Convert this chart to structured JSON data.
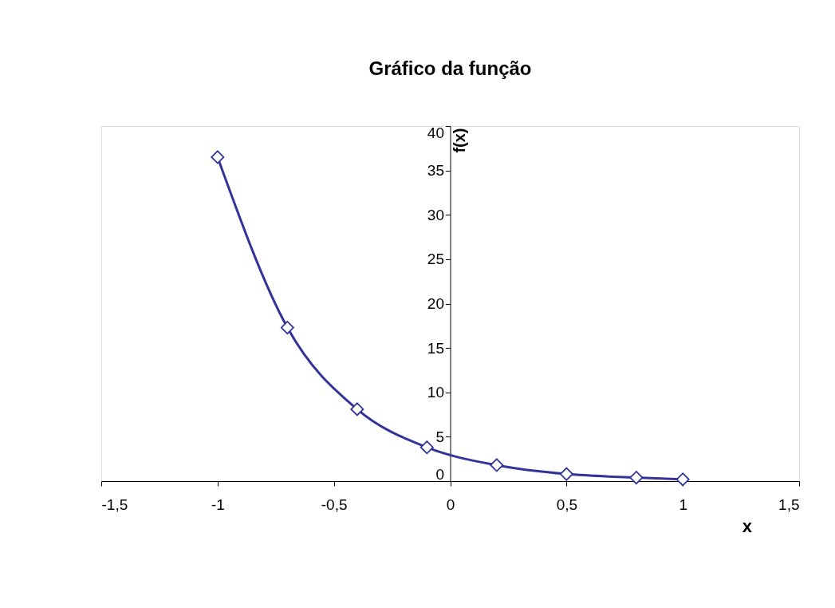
{
  "chart_data": {
    "type": "line",
    "title": "Gráfico da função",
    "xlabel": "x",
    "ylabel": "f(x)",
    "x": [
      -1,
      -0.7,
      -0.4,
      -0.1,
      0.2,
      0.5,
      0.8,
      1
    ],
    "series": [
      {
        "color": "#333399",
        "values": [
          36.5,
          17.3,
          8.1,
          3.8,
          1.8,
          0.8,
          0.4,
          0.2
        ]
      }
    ],
    "xlim": [
      -1.5,
      1.5
    ],
    "xticks": [
      {
        "value": -1.5,
        "label": "-1,5"
      },
      -1,
      {
        "value": -0.5,
        "label": "-0,5"
      },
      0,
      {
        "value": 0.5,
        "label": "0,5"
      },
      1,
      {
        "value": 1.5,
        "label": "1,5"
      }
    ],
    "ylim": [
      0,
      40
    ],
    "yticks": [
      0,
      5,
      10,
      15,
      20,
      25,
      30,
      35,
      40
    ],
    "grid": false,
    "marker": "diamond",
    "line_style": "solid"
  }
}
